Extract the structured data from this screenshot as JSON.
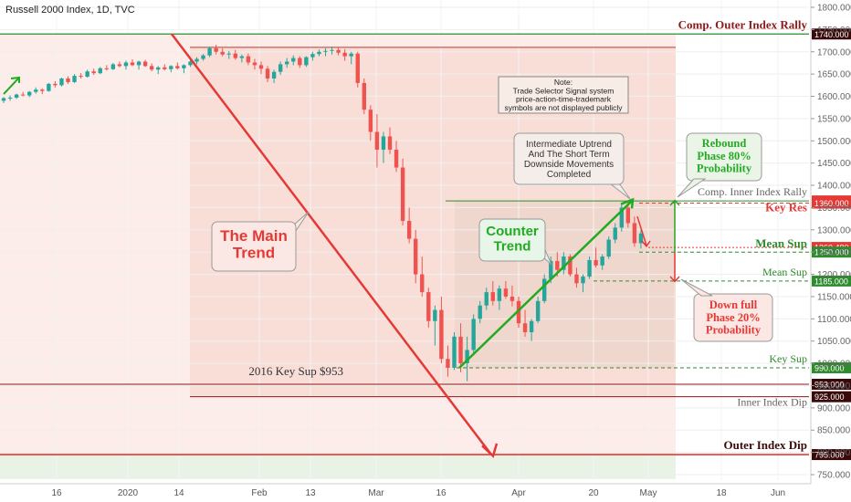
{
  "title": "Russell 2000 Index, 1D, TVC",
  "chart_data": {
    "type": "candlestick",
    "title": "Russell 2000 Index, 1D, TVC",
    "y_ticks": [
      750,
      800,
      850,
      900,
      950,
      1000,
      1050,
      1100,
      1150,
      1200,
      1250,
      1300,
      1350,
      1400,
      1450,
      1500,
      1550,
      1600,
      1650,
      1700,
      1750,
      1800
    ],
    "ylim": [
      730,
      1810
    ],
    "x_ticks": [
      "16",
      "2020",
      "14",
      "Feb",
      "13",
      "Mar",
      "16",
      "Apr",
      "20",
      "May",
      "18",
      "Jun"
    ],
    "levels": [
      {
        "value": 1740,
        "label": "Comp. Outer Index Rally",
        "price_tag": "1740.000",
        "color": "#2e8b2e",
        "tag_color": "#3a0a0a"
      },
      {
        "value": 1365,
        "label": "Comp. Inner Index Rally",
        "price_tag": "1365.000",
        "color": "#2e8b2e",
        "tag_color": "#e53935"
      },
      {
        "value": 1360,
        "label": "Key Res",
        "price_tag": "1360.000",
        "color": "#e53935",
        "tag_color": "#e53935"
      },
      {
        "value": 1260.48,
        "label": "",
        "price_tag": "1260.480",
        "color": "#e53935",
        "tag_color": "#e53935"
      },
      {
        "value": 1250,
        "label": "Mean Sup",
        "price_tag": "1250.000",
        "color": "#2e8b2e",
        "tag_color": "#2e8b2e"
      },
      {
        "value": 1185,
        "label": "Mean Sup",
        "price_tag": "1185.000",
        "color": "#2e8b2e",
        "tag_color": "#2e8b2e"
      },
      {
        "value": 990,
        "label": "Key Sup",
        "price_tag": "990.000",
        "color": "#2e8b2e",
        "tag_color": "#2e8b2e"
      },
      {
        "value": 953,
        "label": "2016 Key Sup $953",
        "price_tag": "953.000",
        "color": "#8b1a1a",
        "tag_color": "#3a0a0a"
      },
      {
        "value": 925,
        "label": "Inner Index Dip",
        "price_tag": "925.000",
        "color": "#8b1a1a",
        "tag_color": "#3a0a0a"
      },
      {
        "value": 795,
        "label": "Outer Index Dip",
        "price_tag": "795.000",
        "color": "#e53935",
        "tag_color": "#3a0a0a"
      }
    ],
    "annotations": {
      "main_trend": "The Main\nTrend",
      "counter_trend": "Counter\nTrend",
      "rebound": "Rebound\nPhase 80%\nProbability",
      "down": "Down full\nPhase 20%\nProbability",
      "uptrend_note": "Intermediate Uptrend\nAnd The Short Term\nDownside Movements\nCompleted",
      "system_note": "Note:\nTrade Selector Signal system\nprice-action-time-trademark\nsymbols are not displayed publicly"
    },
    "candles": [
      [
        1590,
        1598,
        1585,
        1596
      ],
      [
        1596,
        1602,
        1590,
        1597
      ],
      [
        1597,
        1606,
        1594,
        1604
      ],
      [
        1604,
        1610,
        1600,
        1602
      ],
      [
        1602,
        1612,
        1598,
        1610
      ],
      [
        1610,
        1620,
        1606,
        1615
      ],
      [
        1615,
        1618,
        1605,
        1612
      ],
      [
        1612,
        1630,
        1610,
        1628
      ],
      [
        1628,
        1634,
        1620,
        1625
      ],
      [
        1625,
        1642,
        1622,
        1640
      ],
      [
        1640,
        1645,
        1628,
        1632
      ],
      [
        1632,
        1650,
        1630,
        1646
      ],
      [
        1646,
        1652,
        1640,
        1644
      ],
      [
        1644,
        1660,
        1642,
        1656
      ],
      [
        1656,
        1662,
        1648,
        1652
      ],
      [
        1652,
        1666,
        1650,
        1663
      ],
      [
        1663,
        1670,
        1658,
        1661
      ],
      [
        1661,
        1675,
        1659,
        1672
      ],
      [
        1672,
        1678,
        1665,
        1668
      ],
      [
        1668,
        1680,
        1660,
        1676
      ],
      [
        1676,
        1683,
        1668,
        1670
      ],
      [
        1670,
        1680,
        1660,
        1678
      ],
      [
        1678,
        1682,
        1666,
        1668
      ],
      [
        1668,
        1674,
        1656,
        1660
      ],
      [
        1660,
        1668,
        1650,
        1665
      ],
      [
        1665,
        1672,
        1658,
        1661
      ],
      [
        1661,
        1670,
        1654,
        1668
      ],
      [
        1668,
        1676,
        1660,
        1663
      ],
      [
        1663,
        1672,
        1652,
        1670
      ],
      [
        1670,
        1682,
        1666,
        1678
      ],
      [
        1678,
        1688,
        1672,
        1684
      ],
      [
        1684,
        1695,
        1680,
        1692
      ],
      [
        1692,
        1712,
        1688,
        1708
      ],
      [
        1708,
        1716,
        1694,
        1700
      ],
      [
        1700,
        1708,
        1690,
        1694
      ],
      [
        1694,
        1702,
        1684,
        1696
      ],
      [
        1696,
        1704,
        1682,
        1686
      ],
      [
        1686,
        1694,
        1676,
        1690
      ],
      [
        1690,
        1696,
        1670,
        1676
      ],
      [
        1676,
        1684,
        1660,
        1670
      ],
      [
        1670,
        1678,
        1650,
        1662
      ],
      [
        1662,
        1668,
        1632,
        1640
      ],
      [
        1640,
        1660,
        1630,
        1655
      ],
      [
        1655,
        1678,
        1648,
        1672
      ],
      [
        1672,
        1686,
        1664,
        1678
      ],
      [
        1678,
        1692,
        1670,
        1686
      ],
      [
        1686,
        1690,
        1664,
        1670
      ],
      [
        1670,
        1690,
        1666,
        1688
      ],
      [
        1688,
        1700,
        1680,
        1695
      ],
      [
        1695,
        1705,
        1690,
        1700
      ],
      [
        1700,
        1708,
        1690,
        1702
      ],
      [
        1702,
        1712,
        1694,
        1704
      ],
      [
        1704,
        1710,
        1692,
        1698
      ],
      [
        1698,
        1706,
        1680,
        1690
      ],
      [
        1690,
        1700,
        1672,
        1696
      ],
      [
        1696,
        1700,
        1620,
        1630
      ],
      [
        1630,
        1640,
        1560,
        1570
      ],
      [
        1570,
        1580,
        1500,
        1520
      ],
      [
        1520,
        1560,
        1440,
        1480
      ],
      [
        1480,
        1520,
        1450,
        1510
      ],
      [
        1510,
        1530,
        1470,
        1480
      ],
      [
        1480,
        1500,
        1430,
        1440
      ],
      [
        1440,
        1460,
        1310,
        1320
      ],
      [
        1320,
        1350,
        1270,
        1280
      ],
      [
        1280,
        1300,
        1180,
        1200
      ],
      [
        1200,
        1240,
        1150,
        1160
      ],
      [
        1160,
        1170,
        1080,
        1095
      ],
      [
        1095,
        1130,
        1040,
        1120
      ],
      [
        1120,
        1150,
        1000,
        1010
      ],
      [
        1010,
        1040,
        970,
        990
      ],
      [
        990,
        1070,
        985,
        1060
      ],
      [
        1060,
        1090,
        980,
        1000
      ],
      [
        1000,
        1060,
        960,
        1030
      ],
      [
        1030,
        1110,
        1020,
        1100
      ],
      [
        1100,
        1140,
        1090,
        1130
      ],
      [
        1130,
        1170,
        1120,
        1160
      ],
      [
        1160,
        1185,
        1130,
        1140
      ],
      [
        1140,
        1175,
        1120,
        1168
      ],
      [
        1168,
        1185,
        1145,
        1150
      ],
      [
        1150,
        1175,
        1128,
        1140
      ],
      [
        1140,
        1150,
        1080,
        1090
      ],
      [
        1090,
        1120,
        1060,
        1070
      ],
      [
        1070,
        1100,
        1050,
        1095
      ],
      [
        1095,
        1150,
        1090,
        1140
      ],
      [
        1140,
        1200,
        1135,
        1190
      ],
      [
        1190,
        1240,
        1180,
        1230
      ],
      [
        1230,
        1250,
        1195,
        1210
      ],
      [
        1210,
        1250,
        1200,
        1240
      ],
      [
        1240,
        1245,
        1195,
        1200
      ],
      [
        1200,
        1215,
        1170,
        1180
      ],
      [
        1180,
        1200,
        1160,
        1195
      ],
      [
        1195,
        1240,
        1190,
        1232
      ],
      [
        1232,
        1260,
        1215,
        1220
      ],
      [
        1220,
        1245,
        1210,
        1240
      ],
      [
        1240,
        1285,
        1235,
        1278
      ],
      [
        1278,
        1315,
        1270,
        1305
      ],
      [
        1305,
        1360,
        1296,
        1350
      ],
      [
        1350,
        1365,
        1305,
        1315
      ],
      [
        1315,
        1330,
        1262,
        1270
      ],
      [
        1270,
        1300,
        1258,
        1292
      ]
    ]
  }
}
